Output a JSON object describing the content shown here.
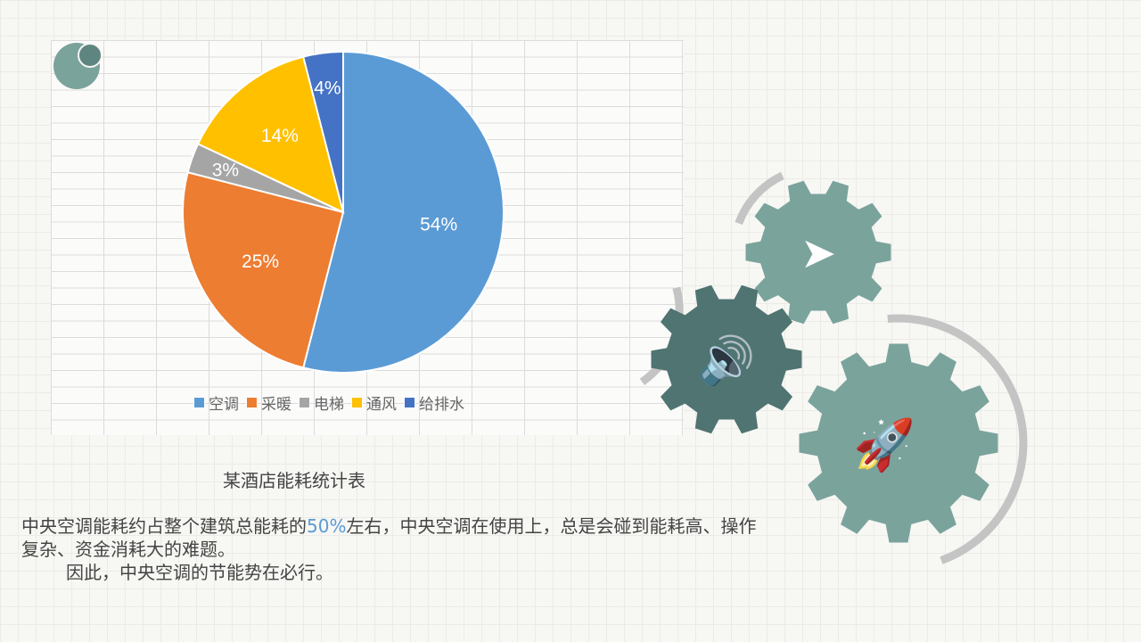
{
  "chart_data": {
    "type": "pie",
    "categories": [
      "空调",
      "采暖",
      "电梯",
      "通风",
      "给排水"
    ],
    "values": [
      54,
      25,
      3,
      14,
      4
    ],
    "labels": [
      "54%",
      "25%",
      "3%",
      "14%",
      "4%"
    ],
    "colors": [
      "#5b9bd5",
      "#ed7d31",
      "#a5a5a5",
      "#ffc000",
      "#4472c4"
    ],
    "title": "某酒店能耗统计表",
    "legend_position": "bottom"
  },
  "text": {
    "line1_before": "中央空调能耗约占整个建筑总能耗的",
    "line1_highlight": "50%",
    "line1_after": "左右，中央空调在使用上，总是会碰到能耗高、操作复杂、资金消耗大的难题。",
    "line2": "因此，中央空调的节能势在必行。"
  },
  "icons": [
    "paper-plane-icon",
    "speaker-icon",
    "rocket-icon"
  ],
  "accent_colors": {
    "gear_light": "#7aa39c",
    "gear_dark": "#4f7472",
    "arrow": "#c4c4c4"
  }
}
